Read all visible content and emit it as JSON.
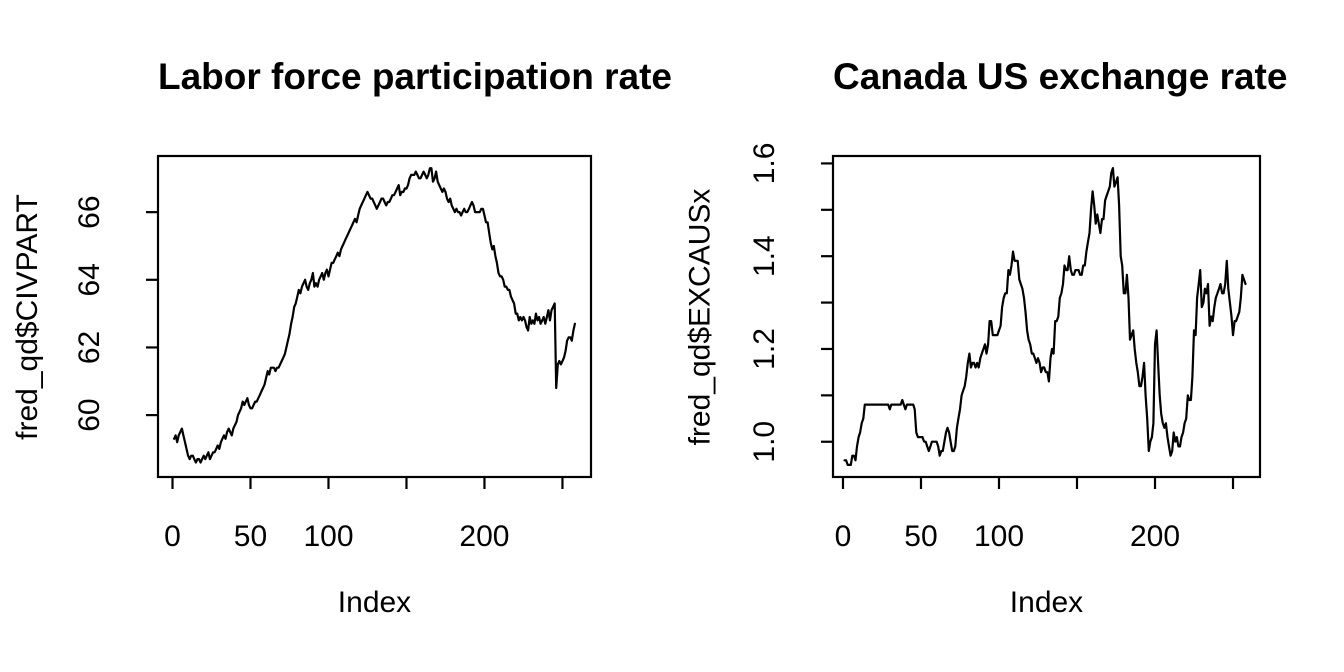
{
  "figure": {
    "background_color": "#ffffff",
    "line_color": "#000000",
    "text_color": "#000000"
  },
  "chart_data": [
    {
      "type": "line",
      "title": "Labor force participation rate",
      "xlabel": "Index",
      "ylabel": "fred_qd$CIVPART",
      "legend": "none",
      "grid": false,
      "xlim": [
        -9.3,
        268.3
      ],
      "ylim": [
        58.17,
        67.66
      ],
      "x_ticks": [
        0,
        50,
        100,
        150,
        200,
        250
      ],
      "x_tick_labels": [
        "0",
        "50",
        "100",
        "",
        "200",
        ""
      ],
      "y_ticks": [
        60,
        62,
        64,
        66
      ],
      "y_tick_labels": [
        "60",
        "62",
        "64",
        "66"
      ],
      "x_start": 1,
      "x_step": 1,
      "values": [
        59.3,
        59.4,
        59.2,
        59.4,
        59.5,
        59.6,
        59.4,
        59.2,
        59.0,
        58.8,
        58.7,
        58.8,
        58.8,
        58.7,
        58.6,
        58.7,
        58.7,
        58.6,
        58.7,
        58.8,
        58.7,
        58.8,
        58.9,
        58.7,
        58.8,
        58.9,
        58.9,
        59.0,
        59.1,
        59.0,
        59.2,
        59.3,
        59.4,
        59.3,
        59.5,
        59.6,
        59.5,
        59.4,
        59.6,
        59.7,
        59.8,
        60.0,
        60.1,
        60.2,
        60.4,
        60.3,
        60.4,
        60.5,
        60.3,
        60.2,
        60.2,
        60.3,
        60.4,
        60.4,
        60.5,
        60.6,
        60.7,
        60.8,
        60.9,
        61.1,
        61.3,
        61.2,
        61.4,
        61.4,
        61.4,
        61.3,
        61.4,
        61.4,
        61.5,
        61.6,
        61.7,
        61.8,
        62.0,
        62.2,
        62.4,
        62.7,
        62.9,
        63.2,
        63.3,
        63.5,
        63.7,
        63.6,
        63.8,
        63.9,
        64.0,
        63.8,
        63.7,
        63.9,
        64.0,
        64.2,
        63.8,
        63.9,
        63.8,
        64.0,
        64.1,
        64.2,
        64.0,
        64.2,
        64.3,
        64.1,
        64.3,
        64.5,
        64.5,
        64.6,
        64.7,
        64.8,
        64.7,
        64.9,
        65.0,
        65.1,
        65.2,
        65.3,
        65.4,
        65.5,
        65.6,
        65.7,
        65.8,
        65.7,
        65.9,
        66.1,
        66.2,
        66.3,
        66.4,
        66.5,
        66.6,
        66.5,
        66.4,
        66.4,
        66.3,
        66.2,
        66.1,
        66.2,
        66.3,
        66.4,
        66.4,
        66.3,
        66.2,
        66.3,
        66.3,
        66.4,
        66.5,
        66.5,
        66.6,
        66.7,
        66.8,
        66.5,
        66.6,
        66.6,
        66.7,
        66.7,
        66.8,
        67.0,
        67.1,
        67.1,
        67.1,
        67.2,
        67.1,
        67.0,
        67.0,
        67.1,
        67.2,
        67.1,
        67.0,
        67.1,
        67.3,
        67.3,
        66.9,
        67.0,
        67.2,
        66.9,
        66.8,
        66.7,
        66.6,
        66.7,
        66.6,
        66.4,
        66.3,
        66.4,
        66.2,
        66.1,
        66.0,
        66.1,
        66.0,
        66.0,
        65.9,
        66.0,
        66.1,
        66.0,
        66.0,
        66.1,
        66.2,
        66.3,
        66.2,
        66.0,
        66.0,
        66.0,
        66.0,
        66.1,
        66.1,
        65.9,
        65.7,
        65.7,
        65.4,
        65.1,
        64.9,
        65.0,
        64.7,
        64.5,
        64.2,
        64.1,
        64.1,
        64.0,
        63.8,
        63.8,
        63.7,
        63.7,
        63.5,
        63.4,
        63.3,
        63.0,
        63.0,
        62.8,
        62.9,
        62.8,
        62.9,
        62.8,
        62.6,
        62.5,
        62.9,
        62.7,
        62.8,
        62.7,
        63.0,
        62.8,
        62.9,
        62.7,
        62.8,
        62.9,
        62.7,
        62.9,
        63.1,
        62.8,
        63.1,
        63.2,
        63.3,
        60.8,
        61.5,
        61.6,
        61.5,
        61.6,
        61.7,
        61.9,
        62.2,
        62.3,
        62.3,
        62.2,
        62.5,
        62.7
      ]
    },
    {
      "type": "line",
      "title": "Canada US exchange rate",
      "xlabel": "Index",
      "ylabel": "fred_qd$EXCAUSx",
      "legend": "none",
      "grid": false,
      "xlim": [
        -6.4,
        267.3
      ],
      "ylim": [
        0.924,
        1.616
      ],
      "x_ticks": [
        0,
        50,
        100,
        150,
        200,
        250
      ],
      "x_tick_labels": [
        "0",
        "50",
        "100",
        "",
        "200",
        ""
      ],
      "y_ticks": [
        1.0,
        1.1,
        1.2,
        1.3,
        1.4,
        1.5,
        1.6
      ],
      "y_tick_labels": [
        "1.0",
        "",
        "1.2",
        "",
        "1.4",
        "",
        "1.6"
      ],
      "x_start": 1,
      "x_step": 1,
      "values": [
        0.96,
        0.96,
        0.95,
        0.95,
        0.95,
        0.97,
        0.97,
        0.96,
        0.99,
        1.01,
        1.02,
        1.04,
        1.05,
        1.08,
        1.08,
        1.08,
        1.08,
        1.08,
        1.08,
        1.08,
        1.08,
        1.08,
        1.08,
        1.08,
        1.08,
        1.08,
        1.08,
        1.08,
        1.08,
        1.07,
        1.08,
        1.08,
        1.08,
        1.08,
        1.08,
        1.08,
        1.08,
        1.09,
        1.08,
        1.07,
        1.08,
        1.08,
        1.08,
        1.08,
        1.08,
        1.07,
        1.02,
        1.01,
        1.01,
        1.01,
        1.01,
        1.0,
        1.0,
        0.99,
        0.98,
        0.99,
        1.0,
        1.0,
        1.0,
        1.0,
        0.99,
        0.97,
        0.98,
        0.98,
        1.0,
        1.02,
        1.03,
        1.02,
        1.0,
        0.98,
        0.98,
        0.99,
        1.03,
        1.05,
        1.07,
        1.1,
        1.11,
        1.12,
        1.14,
        1.17,
        1.19,
        1.16,
        1.17,
        1.17,
        1.16,
        1.17,
        1.16,
        1.18,
        1.19,
        1.2,
        1.21,
        1.19,
        1.21,
        1.26,
        1.26,
        1.23,
        1.23,
        1.23,
        1.23,
        1.24,
        1.25,
        1.29,
        1.31,
        1.32,
        1.32,
        1.37,
        1.36,
        1.38,
        1.41,
        1.39,
        1.39,
        1.39,
        1.35,
        1.34,
        1.33,
        1.31,
        1.28,
        1.24,
        1.22,
        1.21,
        1.19,
        1.19,
        1.18,
        1.17,
        1.18,
        1.17,
        1.15,
        1.16,
        1.16,
        1.15,
        1.15,
        1.13,
        1.18,
        1.2,
        1.19,
        1.26,
        1.26,
        1.27,
        1.31,
        1.32,
        1.34,
        1.38,
        1.37,
        1.37,
        1.4,
        1.37,
        1.36,
        1.36,
        1.37,
        1.37,
        1.37,
        1.36,
        1.36,
        1.38,
        1.38,
        1.41,
        1.43,
        1.45,
        1.5,
        1.54,
        1.51,
        1.47,
        1.49,
        1.47,
        1.45,
        1.48,
        1.48,
        1.52,
        1.53,
        1.54,
        1.55,
        1.58,
        1.59,
        1.55,
        1.56,
        1.57,
        1.51,
        1.4,
        1.38,
        1.32,
        1.32,
        1.36,
        1.31,
        1.22,
        1.23,
        1.24,
        1.2,
        1.17,
        1.15,
        1.12,
        1.12,
        1.14,
        1.17,
        1.1,
        1.05,
        0.98,
        1.0,
        1.01,
        1.04,
        1.21,
        1.24,
        1.17,
        1.1,
        1.06,
        1.04,
        1.03,
        1.04,
        1.01,
        0.99,
        0.97,
        0.98,
        1.02,
        1.0,
        1.01,
        0.99,
        0.99,
        1.01,
        1.02,
        1.04,
        1.05,
        1.1,
        1.09,
        1.09,
        1.14,
        1.24,
        1.23,
        1.31,
        1.34,
        1.37,
        1.29,
        1.3,
        1.33,
        1.32,
        1.34,
        1.25,
        1.27,
        1.26,
        1.29,
        1.31,
        1.32,
        1.33,
        1.34,
        1.32,
        1.32,
        1.34,
        1.39,
        1.33,
        1.3,
        1.27,
        1.23,
        1.26,
        1.26,
        1.27,
        1.28,
        1.31,
        1.36,
        1.35,
        1.34
      ]
    }
  ]
}
